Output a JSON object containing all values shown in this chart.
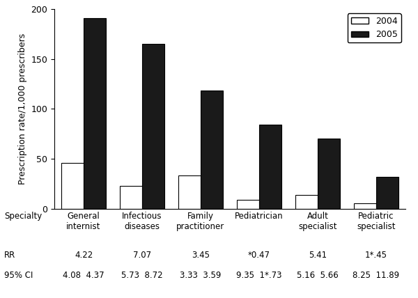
{
  "specialties": [
    "General\ninternist",
    "Infectious\ndiseases",
    "Family\npractitioner",
    "Pediatrician",
    "Adult\nspecialist",
    "Pediatric\nspecialist"
  ],
  "values_2004": [
    46,
    23,
    33,
    9,
    14,
    5
  ],
  "values_2005": [
    191,
    165,
    118,
    84,
    70,
    32
  ],
  "rr": [
    "4.22",
    "7.07",
    "3.45",
    "*0.47",
    "5.41",
    "1*.45"
  ],
  "ci_left": [
    "4.08",
    "5.73",
    "3.33",
    "9.35",
    "5.16",
    "8.25"
  ],
  "ci_right": [
    "4.37",
    "8.72",
    "3.59",
    "1*.73",
    "5.66",
    "11.89"
  ],
  "ylabel": "Prescription rate/1,000 prescribers",
  "ylim": [
    0,
    200
  ],
  "yticks": [
    0,
    50,
    100,
    150,
    200
  ],
  "legend_labels": [
    "2004",
    "2005"
  ],
  "color_2004": "#ffffff",
  "color_2005": "#1a1a1a",
  "edge_color": "#000000",
  "bar_width": 0.38,
  "specialty_label": "Specialty",
  "rr_label": "RR",
  "ci_label": "95% CI",
  "background_color": "#ffffff",
  "font_size": 9,
  "annotation_font_size": 8.5
}
